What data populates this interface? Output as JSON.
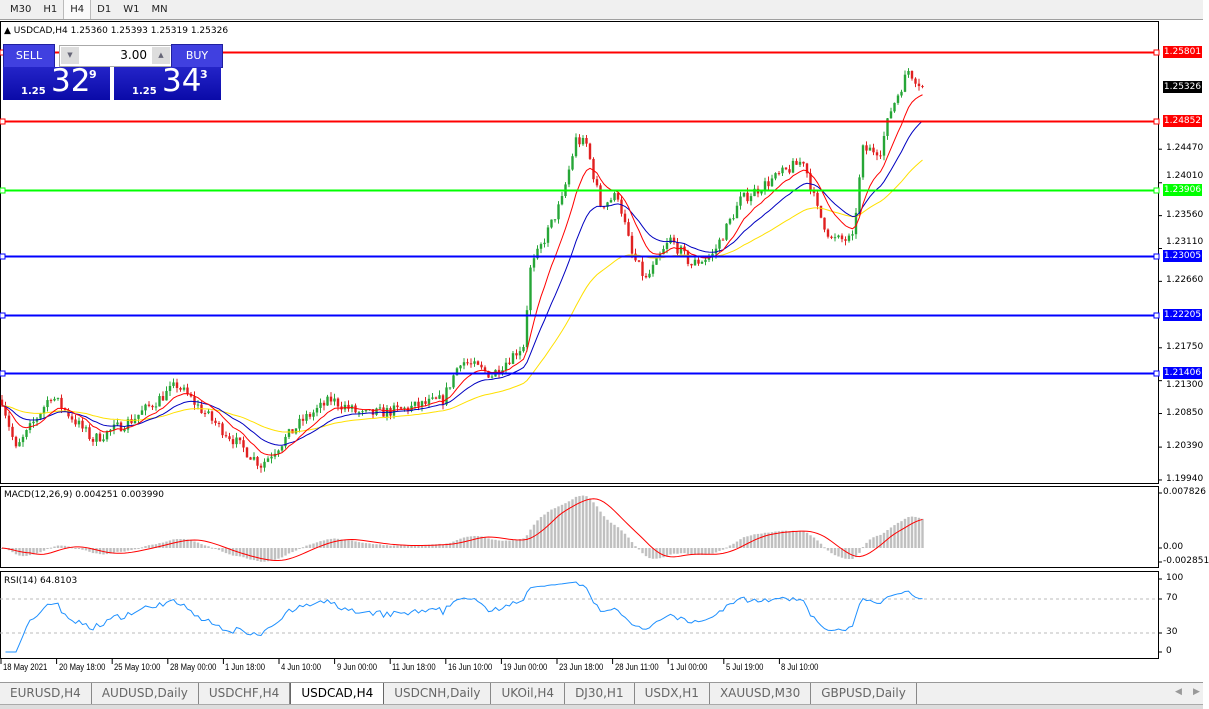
{
  "toolbar": {
    "timeframes": [
      "M30",
      "H1",
      "H4",
      "D1",
      "W1",
      "MN"
    ],
    "active": "H4"
  },
  "chart": {
    "title": "USDCAD,H4  1.25360 1.25393 1.25319 1.25326",
    "trade_panel": {
      "sell_label": "SELL",
      "buy_label": "BUY",
      "lot": "3.00",
      "sell_prefix": "1.25",
      "sell_big": "32",
      "sell_sup": "9",
      "buy_prefix": "1.25",
      "buy_big": "34",
      "buy_sup": "3"
    },
    "price_ticks": [
      "1.24470",
      "1.24010",
      "1.23560",
      "1.23110",
      "1.22660",
      "1.21750",
      "1.21300",
      "1.20850",
      "1.20390",
      "1.19940"
    ],
    "current_price": "1.25326",
    "levels": [
      {
        "price": "1.25801",
        "color": "#ff0000"
      },
      {
        "price": "1.24852",
        "color": "#ff0000"
      },
      {
        "price": "1.23906",
        "color": "#00ff00"
      },
      {
        "price": "1.23005",
        "color": "#0000ff"
      },
      {
        "price": "1.22205",
        "color": "#0000ff"
      },
      {
        "price": "1.21406",
        "color": "#0000ff"
      }
    ],
    "macd": {
      "label": "MACD(12,26,9) 0.004251 0.003990",
      "ticks": [
        "0.007826",
        "0.00",
        "-0.002851"
      ]
    },
    "rsi": {
      "label": "RSI(14) 64.8103",
      "ticks": [
        "100",
        "70",
        "30",
        "0"
      ]
    },
    "date_labels": [
      "18 May 2021",
      "20 May 18:00",
      "25 May 10:00",
      "28 May 00:00",
      "1 Jun 18:00",
      "4 Jun 10:00",
      "9 Jun 00:00",
      "11 Jun 18:00",
      "16 Jun 10:00",
      "19 Jun 00:00",
      "23 Jun 18:00",
      "28 Jun 11:00",
      "1 Jul 00:00",
      "5 Jul 19:00",
      "8 Jul 10:00"
    ],
    "colors": {
      "bull": "#26a637",
      "bear": "#e02020",
      "ma_fast": "#ff0000",
      "ma_mid": "#0000c0",
      "ma_slow": "#ffe000",
      "macd_hist": "#c0c0c0",
      "macd_signal": "#ff0000",
      "rsi": "#1e90ff"
    }
  },
  "chart_data": {
    "type": "candlestick",
    "symbol": "USDCAD",
    "timeframe": "H4",
    "price_path": [
      [
        0,
        1.2104
      ],
      [
        4,
        1.2035
      ],
      [
        14,
        1.211
      ],
      [
        26,
        1.2049
      ],
      [
        37,
        1.2076
      ],
      [
        50,
        1.2124
      ],
      [
        60,
        1.2076
      ],
      [
        74,
        1.2015
      ],
      [
        86,
        1.2076
      ],
      [
        94,
        1.2104
      ],
      [
        103,
        1.2083
      ],
      [
        114,
        1.209
      ],
      [
        126,
        1.2104
      ],
      [
        131,
        1.2158
      ],
      [
        140,
        1.2138
      ],
      [
        149,
        1.2179
      ],
      [
        151,
        1.2282
      ],
      [
        160,
        1.2377
      ],
      [
        164,
        1.246
      ],
      [
        167,
        1.2453
      ],
      [
        171,
        1.2371
      ],
      [
        176,
        1.2384
      ],
      [
        180,
        1.2302
      ],
      [
        184,
        1.2268
      ],
      [
        191,
        1.2323
      ],
      [
        197,
        1.2289
      ],
      [
        203,
        1.2302
      ],
      [
        211,
        1.2377
      ],
      [
        220,
        1.2405
      ],
      [
        229,
        1.2432
      ],
      [
        233,
        1.2364
      ],
      [
        237,
        1.2323
      ],
      [
        243,
        1.2323
      ],
      [
        246,
        1.2446
      ],
      [
        251,
        1.2446
      ],
      [
        254,
        1.2501
      ],
      [
        259,
        1.2555
      ],
      [
        263,
        1.2533
      ]
    ],
    "ylim": [
      1.1994,
      1.261
    ]
  },
  "tabs": {
    "items": [
      "EURUSD,H4",
      "AUDUSD,Daily",
      "USDCHF,H4",
      "USDCAD,H4",
      "USDCNH,Daily",
      "UKOil,H4",
      "DJ30,H1",
      "USDX,H1",
      "XAUUSD,M30",
      "GBPUSD,Daily"
    ],
    "active": "USDCAD,H4"
  }
}
